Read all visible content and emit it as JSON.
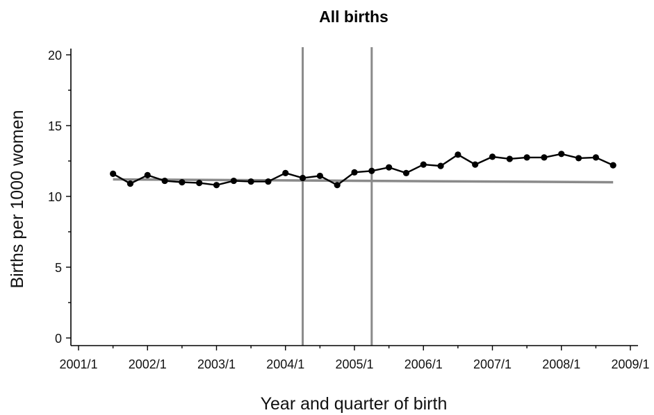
{
  "chart_data": {
    "type": "line",
    "title": "All births",
    "xlabel": "Year and quarter of birth",
    "ylabel": "Births per 1000 women",
    "xlim": [
      2001.0,
      2009.0
    ],
    "ylim": [
      0,
      20
    ],
    "y_ticks": [
      0,
      5,
      10,
      15,
      20
    ],
    "x_ticks": [
      {
        "value": 2001.0,
        "label": "2001/1"
      },
      {
        "value": 2002.0,
        "label": "2002/1"
      },
      {
        "value": 2003.0,
        "label": "2003/1"
      },
      {
        "value": 2004.0,
        "label": "2004/1"
      },
      {
        "value": 2005.0,
        "label": "2005/1"
      },
      {
        "value": 2006.0,
        "label": "2006/1"
      },
      {
        "value": 2007.0,
        "label": "2007/1"
      },
      {
        "value": 2008.0,
        "label": "2008/1"
      },
      {
        "value": 2009.0,
        "label": "2009/1"
      }
    ],
    "grid": false,
    "legend": "none",
    "vertical_reference_lines": [
      2004.25,
      2005.25
    ],
    "series": [
      {
        "color": "#000000",
        "marker": "circle",
        "x": [
          2001.5,
          2001.75,
          2002.0,
          2002.25,
          2002.5,
          2002.75,
          2003.0,
          2003.25,
          2003.5,
          2003.75,
          2004.0,
          2004.25,
          2004.5,
          2004.75,
          2005.0,
          2005.25,
          2005.5,
          2005.75,
          2006.0,
          2006.25,
          2006.5,
          2006.75,
          2007.0,
          2007.25,
          2007.5,
          2007.75,
          2008.0,
          2008.25,
          2008.5,
          2008.75
        ],
        "y": [
          11.6,
          10.9,
          11.5,
          11.1,
          11.0,
          10.95,
          10.8,
          11.1,
          11.05,
          11.05,
          11.65,
          11.3,
          11.45,
          10.8,
          11.7,
          11.8,
          12.05,
          11.65,
          12.25,
          12.15,
          12.95,
          12.25,
          12.8,
          12.65,
          12.75,
          12.75,
          13.0,
          12.7,
          12.75,
          12.2
        ]
      },
      {
        "color": "#8a8a8a",
        "marker": "none",
        "x": [
          2001.5,
          2008.75
        ],
        "y": [
          11.2,
          11.0
        ]
      }
    ]
  }
}
